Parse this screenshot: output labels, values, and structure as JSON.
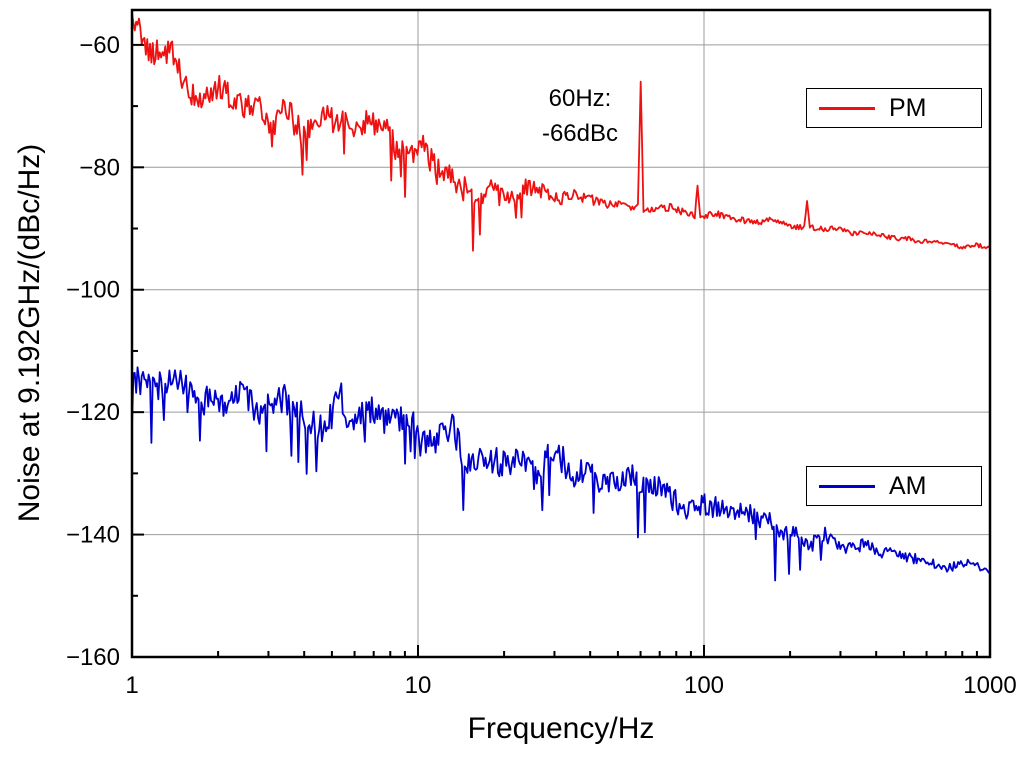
{
  "chart_data": {
    "type": "line",
    "title": "",
    "xlabel": "Frequency/Hz",
    "ylabel": "Noise at 9.192GHz/(dBc/Hz)",
    "xscale": "log",
    "xlim": [
      1,
      1000
    ],
    "ylim": [
      -160,
      -54.3
    ],
    "xticks": [
      1,
      10,
      100,
      1000
    ],
    "xtick_labels": [
      "1",
      "10",
      "100",
      "1000"
    ],
    "yticks": [
      -160,
      -140,
      -120,
      -100,
      -80,
      -60
    ],
    "grid": true,
    "grid_color": "#9b9b9b",
    "frame_color": "#000000",
    "legend_position": "right-inside-boxes",
    "seed": 12,
    "points_per_series": 620,
    "annotation": {
      "lines": [
        "60Hz:",
        "-66dBc"
      ],
      "x": 60,
      "y": -66
    },
    "series": [
      {
        "name": "PM",
        "color": "#ee1111",
        "anchors": [
          [
            1,
            -53.5
          ],
          [
            1.15,
            -60
          ],
          [
            1.5,
            -65
          ],
          [
            2,
            -68
          ],
          [
            2.5,
            -70
          ],
          [
            3,
            -71.5
          ],
          [
            4,
            -73
          ],
          [
            5,
            -73.5
          ],
          [
            6,
            -73
          ],
          [
            7,
            -74.5
          ],
          [
            8,
            -75
          ],
          [
            10,
            -77.5
          ],
          [
            12,
            -80.5
          ],
          [
            14,
            -82
          ],
          [
            16,
            -83.5
          ],
          [
            18,
            -83.5
          ],
          [
            20,
            -83
          ],
          [
            25,
            -82.5
          ],
          [
            30,
            -84
          ],
          [
            40,
            -85.3
          ],
          [
            50,
            -86
          ],
          [
            70,
            -86.6
          ],
          [
            100,
            -87.5
          ],
          [
            150,
            -88.5
          ],
          [
            200,
            -89.3
          ],
          [
            300,
            -90.3
          ],
          [
            500,
            -91.5
          ],
          [
            700,
            -92.3
          ],
          [
            1000,
            -93
          ]
        ],
        "noise_amp": [
          [
            1,
            2.6
          ],
          [
            3,
            3
          ],
          [
            8,
            2.6
          ],
          [
            12,
            2.8
          ],
          [
            20,
            2.4
          ],
          [
            35,
            1.2
          ],
          [
            50,
            0.8
          ],
          [
            100,
            0.7
          ],
          [
            300,
            0.5
          ],
          [
            1000,
            0.45
          ]
        ],
        "dips": {
          "prob": 0.05,
          "depth": 9,
          "xmin": 2.5,
          "xmax": 25
        },
        "spikes": [
          {
            "x": 60,
            "y": -66
          },
          {
            "x": 95,
            "y": -83
          },
          {
            "x": 230,
            "y": -85.5
          }
        ]
      },
      {
        "name": "AM",
        "color": "#0000cc",
        "anchors": [
          [
            1,
            -114
          ],
          [
            1.5,
            -117
          ],
          [
            2,
            -117.5
          ],
          [
            3,
            -118.5
          ],
          [
            4,
            -119.5
          ],
          [
            5,
            -120
          ],
          [
            7,
            -120.5
          ],
          [
            10,
            -123
          ],
          [
            14,
            -125
          ],
          [
            20,
            -127
          ],
          [
            30,
            -129
          ],
          [
            40,
            -130.5
          ],
          [
            60,
            -132.5
          ],
          [
            80,
            -134
          ],
          [
            100,
            -135.5
          ],
          [
            150,
            -137.5
          ],
          [
            200,
            -139.5
          ],
          [
            300,
            -141.5
          ],
          [
            500,
            -143.5
          ],
          [
            700,
            -144.8
          ],
          [
            1000,
            -146
          ]
        ],
        "noise_amp": [
          [
            1,
            3
          ],
          [
            3,
            3.4
          ],
          [
            10,
            3
          ],
          [
            30,
            3
          ],
          [
            100,
            2.4
          ],
          [
            200,
            1.8
          ],
          [
            400,
            1.2
          ],
          [
            1000,
            0.9
          ]
        ],
        "dips": {
          "prob": 0.05,
          "depth": 9,
          "xmin": 1,
          "xmax": 300
        },
        "spikes": []
      }
    ]
  }
}
